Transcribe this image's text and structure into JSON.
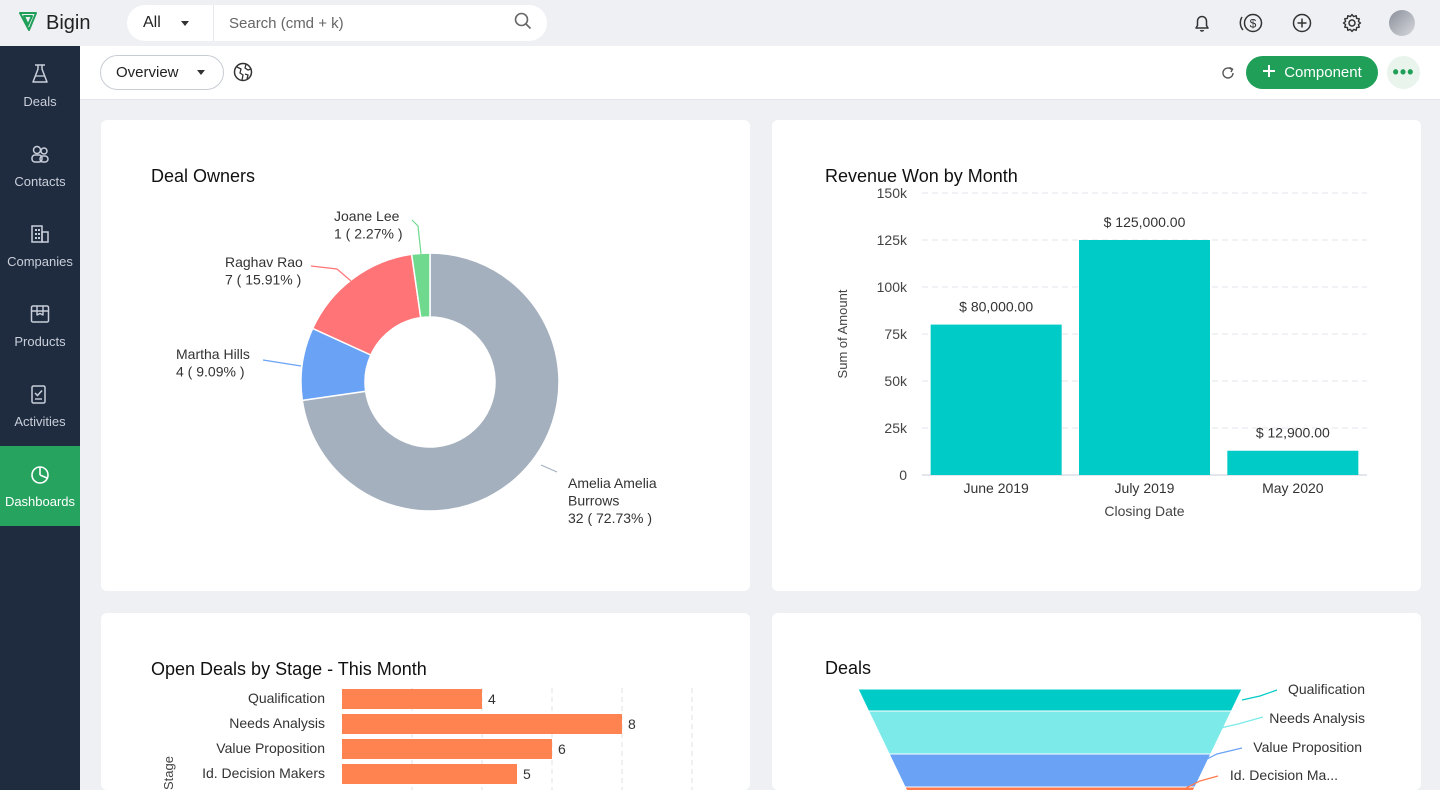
{
  "app": {
    "name": "Bigin"
  },
  "search": {
    "scope": "All",
    "placeholder": "Search (cmd + k)"
  },
  "topbar_icons": [
    "bell-icon",
    "revenue-icon",
    "add-icon",
    "settings-icon",
    "avatar"
  ],
  "sidebar": {
    "items": [
      {
        "label": "Deals",
        "icon": "deals-icon",
        "active": false
      },
      {
        "label": "Contacts",
        "icon": "contacts-icon",
        "active": false
      },
      {
        "label": "Companies",
        "icon": "companies-icon",
        "active": false
      },
      {
        "label": "Products",
        "icon": "products-icon",
        "active": false
      },
      {
        "label": "Activities",
        "icon": "activities-icon",
        "active": false
      },
      {
        "label": "Dashboards",
        "icon": "dashboards-icon",
        "active": true
      }
    ]
  },
  "toolbar": {
    "dashboard_select": "Overview",
    "component_label": "Component",
    "more_label": "•••"
  },
  "colors": {
    "accent": "#1f9f58",
    "sidebar": "#1f2b3f",
    "teal": "#00cbc7",
    "orange": "#ff8350"
  },
  "chart_data": [
    {
      "type": "pie",
      "title": "Deal Owners",
      "donut": true,
      "slices": [
        {
          "name": "Amelia Amelia Burrows",
          "label_lines": [
            "Amelia Amelia",
            "Burrows",
            "32 ( 72.73% )"
          ],
          "value": 32,
          "percent": 72.73,
          "color": "#a5b0be"
        },
        {
          "name": "Martha Hills",
          "label_lines": [
            "Martha Hills",
            "4 ( 9.09% )"
          ],
          "value": 4,
          "percent": 9.09,
          "color": "#6aa2f5"
        },
        {
          "name": "Raghav Rao",
          "label_lines": [
            "Raghav Rao",
            "7 ( 15.91% )"
          ],
          "value": 7,
          "percent": 15.91,
          "color": "#ff7477"
        },
        {
          "name": "Joane Lee",
          "label_lines": [
            "Joane Lee",
            "1 ( 2.27% )"
          ],
          "value": 1,
          "percent": 2.27,
          "color": "#6fd98e"
        }
      ]
    },
    {
      "type": "bar",
      "title": "Revenue Won by Month",
      "categories": [
        "June 2019",
        "July 2019",
        "May 2020"
      ],
      "values": [
        80000,
        125000,
        12900
      ],
      "data_labels": [
        "$ 80,000.00",
        "$ 125,000.00",
        "$ 12,900.00"
      ],
      "xlabel": "Closing Date",
      "ylabel": "Sum of Amount",
      "ylim": [
        0,
        150000
      ],
      "yticks": [
        0,
        25000,
        50000,
        75000,
        100000,
        125000,
        150000
      ],
      "ytick_labels": [
        "0",
        "25k",
        "50k",
        "75k",
        "100k",
        "125k",
        "150k"
      ],
      "grid": true,
      "color": "#00cbc7"
    },
    {
      "type": "bar",
      "orientation": "horizontal",
      "title": "Open Deals by Stage - This Month",
      "categories": [
        "Qualification",
        "Needs Analysis",
        "Value Proposition",
        "Id. Decision Makers"
      ],
      "values": [
        4,
        8,
        6,
        5
      ],
      "ylabel": "Stage",
      "grid": true,
      "color": "#ff8350"
    },
    {
      "type": "funnel",
      "title": "Deals",
      "stages": [
        "Qualification",
        "Needs Analysis",
        "Value Proposition",
        "Id. Decision Ma..."
      ],
      "colors": [
        "#00cbc7",
        "#7deaea",
        "#6aa2f5",
        "#ff7a4d"
      ]
    }
  ]
}
